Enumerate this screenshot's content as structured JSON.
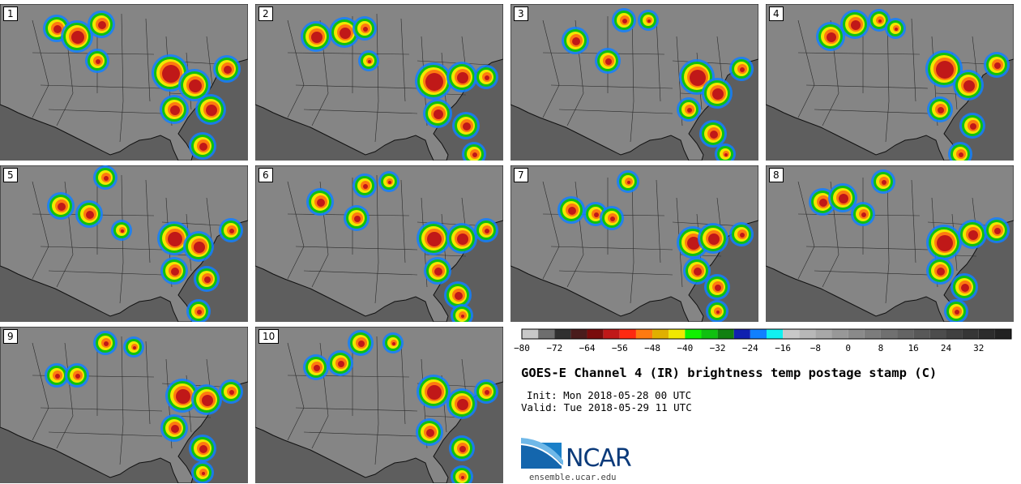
{
  "figure": {
    "title": "GOES-E Channel 4 (IR) brightness temp postage stamp (C)",
    "init": "Init: Mon 2018-05-28 00 UTC",
    "valid": "Valid: Tue 2018-05-29 11 UTC",
    "logo_text": "NCAR",
    "url": "ensemble.ucar.edu"
  },
  "panels": [
    "1",
    "2",
    "3",
    "4",
    "5",
    "6",
    "7",
    "8",
    "9",
    "10"
  ],
  "colorbar": {
    "tick_labels": [
      "−80",
      "−72",
      "−64",
      "−56",
      "−48",
      "−40",
      "−32",
      "−24",
      "−16",
      "−8",
      "0",
      "8",
      "16",
      "24",
      "32"
    ],
    "tick_values": [
      -80,
      -72,
      -64,
      -56,
      -48,
      -40,
      -32,
      -24,
      -16,
      -8,
      0,
      8,
      16,
      24,
      32
    ],
    "range": [
      -80,
      40
    ],
    "bins": [
      {
        "from": -80,
        "to": -76,
        "color": "#c8c8c8"
      },
      {
        "from": -76,
        "to": -72,
        "color": "#6e6e6e"
      },
      {
        "from": -72,
        "to": -68,
        "color": "#303030"
      },
      {
        "from": -68,
        "to": -64,
        "color": "#4a1c1c"
      },
      {
        "from": -64,
        "to": -60,
        "color": "#7a0c0c"
      },
      {
        "from": -60,
        "to": -56,
        "color": "#c01818"
      },
      {
        "from": -56,
        "to": -52,
        "color": "#ff2a10"
      },
      {
        "from": -52,
        "to": -48,
        "color": "#ff7a10"
      },
      {
        "from": -48,
        "to": -44,
        "color": "#e0b000"
      },
      {
        "from": -44,
        "to": -40,
        "color": "#f0e800"
      },
      {
        "from": -40,
        "to": -36,
        "color": "#10f000"
      },
      {
        "from": -36,
        "to": -32,
        "color": "#10c010"
      },
      {
        "from": -32,
        "to": -28,
        "color": "#108010"
      },
      {
        "from": -28,
        "to": -24,
        "color": "#1020b0"
      },
      {
        "from": -24,
        "to": -20,
        "color": "#1080ff"
      },
      {
        "from": -20,
        "to": -16,
        "color": "#10f0f0"
      },
      {
        "from": -16,
        "to": -12,
        "color": "#c8c8c8"
      },
      {
        "from": -12,
        "to": -8,
        "color": "#b8b8b8"
      },
      {
        "from": -8,
        "to": -4,
        "color": "#a8a8a8"
      },
      {
        "from": -4,
        "to": 0,
        "color": "#989898"
      },
      {
        "from": 0,
        "to": 4,
        "color": "#8a8a8a"
      },
      {
        "from": 4,
        "to": 8,
        "color": "#7c7c7c"
      },
      {
        "from": 8,
        "to": 12,
        "color": "#707070"
      },
      {
        "from": 12,
        "to": 16,
        "color": "#646464"
      },
      {
        "from": 16,
        "to": 20,
        "color": "#585858"
      },
      {
        "from": 20,
        "to": 24,
        "color": "#4c4c4c"
      },
      {
        "from": 24,
        "to": 28,
        "color": "#404040"
      },
      {
        "from": 28,
        "to": 32,
        "color": "#363636"
      },
      {
        "from": 32,
        "to": 36,
        "color": "#2c2c2c"
      },
      {
        "from": 36,
        "to": 40,
        "color": "#222222"
      }
    ]
  }
}
